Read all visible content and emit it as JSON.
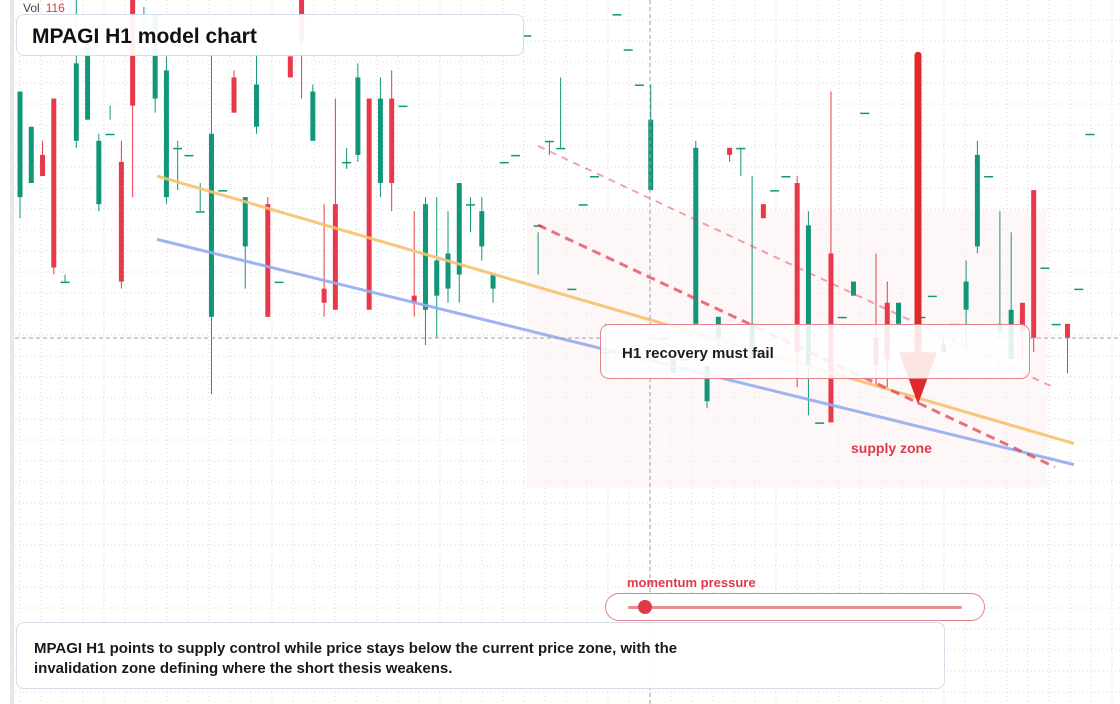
{
  "header": {
    "vol_label": "Vol",
    "vol_value": "116",
    "title": "MPAGI H1 model chart"
  },
  "annotations": {
    "callout": "H1 recovery must fail",
    "zone_label": "supply zone",
    "momentum_label": "momentum pressure",
    "momentum_value": 0.05,
    "summary": "MPAGI H1 points to supply control while price stays below the current price zone, with the invalidation zone defining where the short thesis weakens."
  },
  "colors": {
    "bull": "#12967a",
    "bear": "#e8394b",
    "resistance": "#f6c26e",
    "regression": "#92aef0",
    "signal": "#e0394a",
    "grid": "#d6d9de"
  },
  "chart_data": {
    "type": "candlestick",
    "title": "MPAGI H1 model chart",
    "ylim": [
      0,
      100
    ],
    "grid": true,
    "candles": [
      [
        72,
        87,
        86,
        69
      ],
      [
        74,
        82,
        82,
        75
      ],
      [
        78,
        75,
        80,
        76
      ],
      [
        86,
        62,
        82,
        61
      ],
      [
        60,
        60,
        61,
        60
      ],
      [
        80,
        91,
        100,
        79
      ],
      [
        83,
        94,
        94,
        83
      ],
      [
        71,
        80,
        81,
        70
      ],
      [
        81,
        81,
        85,
        83
      ],
      [
        77,
        60,
        80,
        59
      ],
      [
        100,
        85,
        100,
        72
      ],
      [
        97,
        97,
        99,
        95
      ],
      [
        86,
        98,
        98,
        84
      ],
      [
        72,
        90,
        92,
        71
      ],
      [
        79,
        79,
        80,
        73
      ],
      [
        78,
        78,
        78,
        78
      ],
      [
        70,
        70,
        74,
        70
      ],
      [
        55,
        81,
        97,
        44
      ],
      [
        73,
        73,
        73,
        73
      ],
      [
        89,
        84,
        90,
        84
      ],
      [
        65,
        72,
        72,
        59
      ],
      [
        82,
        88,
        94,
        81
      ],
      [
        71,
        55,
        72,
        55
      ],
      [
        60,
        60,
        60,
        60
      ],
      [
        92,
        89,
        92,
        89
      ],
      [
        100,
        94,
        100,
        86
      ],
      [
        80,
        87,
        88,
        80
      ],
      [
        59,
        57,
        71,
        55
      ],
      [
        71,
        56,
        86,
        56
      ],
      [
        77,
        77,
        79,
        76
      ],
      [
        78,
        89,
        91,
        77
      ],
      [
        86,
        56,
        86,
        58
      ],
      [
        74,
        86,
        89,
        72
      ],
      [
        86,
        74,
        90,
        70
      ],
      [
        85,
        85,
        85,
        85
      ],
      [
        58,
        57,
        70,
        55
      ],
      [
        56,
        71,
        72,
        51
      ],
      [
        58,
        63,
        72,
        52
      ],
      [
        59,
        64,
        70,
        57
      ],
      [
        61,
        74,
        74,
        57
      ],
      [
        71,
        71,
        72,
        67
      ],
      [
        65,
        70,
        72,
        63
      ],
      [
        59,
        61,
        59,
        57
      ],
      [
        77,
        77,
        77,
        77
      ],
      [
        78,
        78,
        78,
        78
      ],
      [
        95,
        95,
        95,
        95
      ],
      [
        68,
        68,
        67,
        61
      ],
      [
        80,
        80,
        80,
        78
      ],
      [
        79,
        79,
        89,
        79
      ],
      [
        59,
        59,
        59,
        59
      ],
      [
        71,
        71,
        71,
        71
      ],
      [
        75,
        75,
        75,
        75
      ],
      [
        50,
        50,
        54,
        47
      ],
      [
        98,
        98,
        98,
        98
      ],
      [
        93,
        93,
        93,
        93
      ],
      [
        88,
        88,
        87,
        87
      ],
      [
        73,
        83,
        88,
        73
      ],
      [
        52,
        52,
        52,
        52
      ],
      [
        47,
        49,
        47,
        49
      ],
      [
        49,
        49,
        49,
        49
      ],
      [
        54,
        79,
        80,
        54
      ],
      [
        43,
        48,
        43,
        42
      ],
      [
        52,
        55,
        55,
        51
      ],
      [
        79,
        78,
        79,
        77
      ],
      [
        79,
        79,
        79,
        75
      ],
      [
        49,
        54,
        75,
        49
      ],
      [
        71,
        69,
        69,
        69
      ],
      [
        73,
        73,
        73,
        73
      ],
      [
        75,
        75,
        75,
        75
      ],
      [
        74,
        50,
        75,
        45
      ],
      [
        48,
        68,
        70,
        41
      ],
      [
        40,
        40,
        40,
        40
      ],
      [
        64,
        40,
        87,
        40
      ],
      [
        55,
        55,
        55,
        55
      ],
      [
        58,
        60,
        57,
        57
      ],
      [
        84,
        84,
        84,
        84
      ],
      [
        52,
        48,
        64,
        45
      ],
      [
        57,
        49,
        60,
        45
      ],
      [
        54,
        57,
        54,
        54
      ],
      [
        49,
        49,
        49,
        49
      ],
      [
        55,
        55,
        55,
        55
      ],
      [
        58,
        58,
        58,
        58
      ],
      [
        50,
        51,
        52,
        50
      ],
      [
        54,
        54,
        54,
        54
      ],
      [
        56,
        60,
        63,
        51
      ],
      [
        65,
        78,
        80,
        64
      ],
      [
        75,
        75,
        75,
        75
      ],
      [
        53,
        54,
        70,
        52
      ],
      [
        49,
        56,
        67,
        49
      ],
      [
        57,
        53,
        56,
        49
      ],
      [
        73,
        52,
        68,
        50
      ],
      [
        62,
        62,
        62,
        62
      ],
      [
        54,
        54,
        54,
        54
      ],
      [
        54,
        52,
        54,
        47
      ],
      [
        59,
        59,
        59,
        59
      ],
      [
        81,
        81,
        81,
        81
      ]
    ],
    "lines": [
      {
        "name": "",
        "from": [
          0,
          75
        ],
        "to": [
          100,
          37
        ]
      },
      {
        "name": "",
        "from": [
          0,
          66
        ],
        "to": [
          100,
          34
        ]
      }
    ],
    "target_arrow": {
      "from": 94,
      "to": 44
    }
  }
}
